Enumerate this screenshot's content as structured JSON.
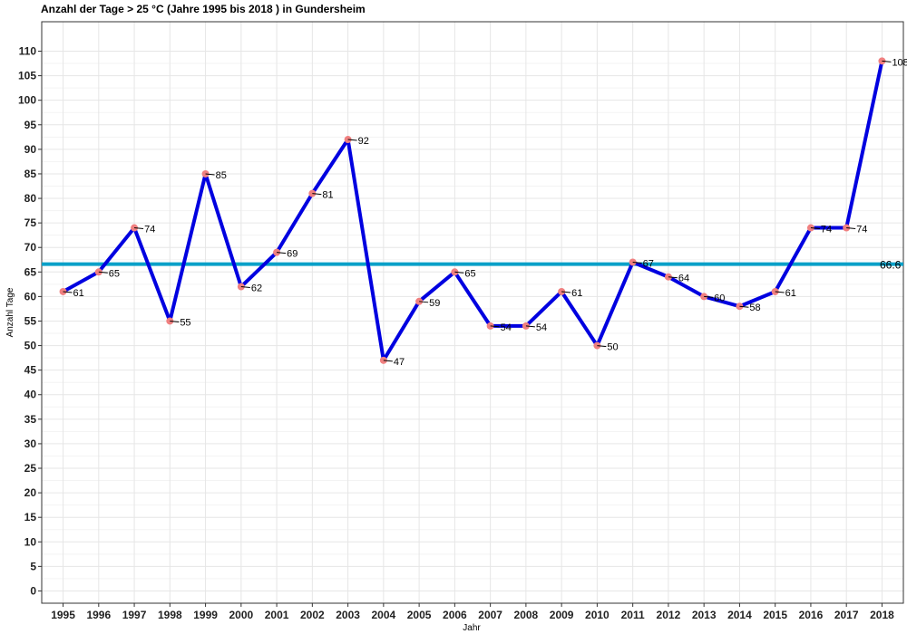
{
  "chart_data": {
    "type": "line",
    "title": "Anzahl der Tage >  25 °C (Jahre 1995 bis 2018 ) in Gundersheim",
    "xlabel": "Jahr",
    "ylabel": "Anzahl Tage",
    "x": [
      1995,
      1996,
      1997,
      1998,
      1999,
      2000,
      2001,
      2002,
      2003,
      2004,
      2005,
      2006,
      2007,
      2008,
      2009,
      2010,
      2011,
      2012,
      2013,
      2014,
      2015,
      2016,
      2017,
      2018
    ],
    "series": [
      {
        "values": [
          61,
          65,
          74,
          55,
          85,
          62,
          69,
          81,
          92,
          47,
          59,
          65,
          54,
          54,
          61,
          50,
          67,
          64,
          60,
          58,
          61,
          74,
          74,
          108
        ],
        "color": "#0000e0",
        "point_color": "#f08080"
      }
    ],
    "mean": {
      "value": 66.6,
      "label": "66.6",
      "color": "#0aa0c8"
    },
    "ylim": [
      -2.5,
      116
    ],
    "yticks": [
      0,
      5,
      10,
      15,
      20,
      25,
      30,
      35,
      40,
      45,
      50,
      55,
      60,
      65,
      70,
      75,
      80,
      85,
      90,
      95,
      100,
      105,
      110
    ],
    "grid": true,
    "legend": "none"
  }
}
